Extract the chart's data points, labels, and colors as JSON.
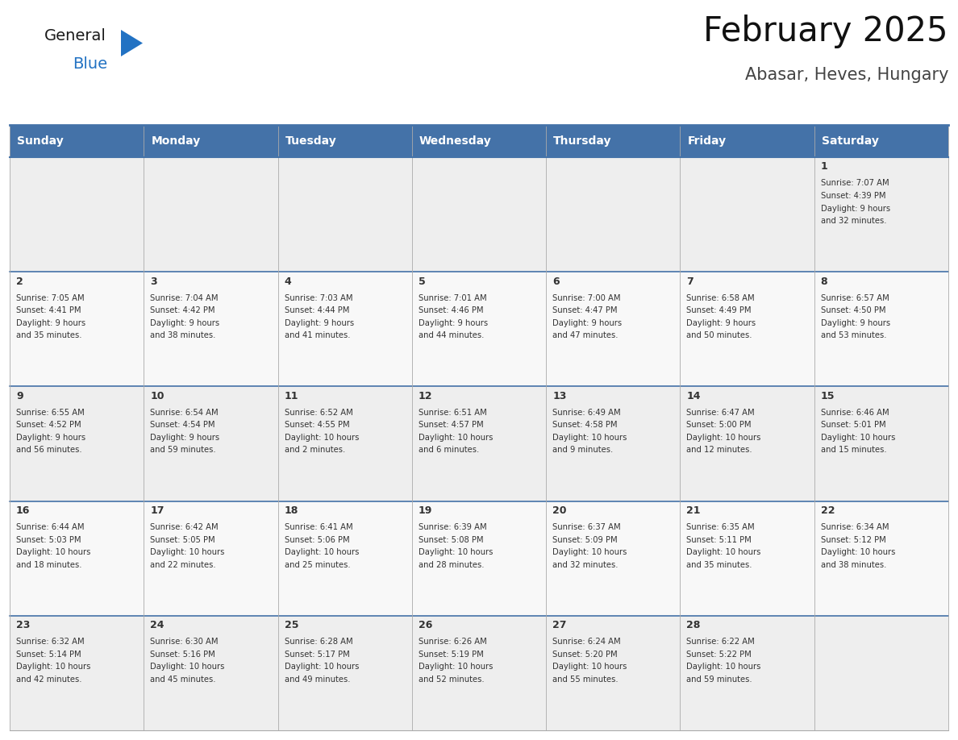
{
  "title": "February 2025",
  "subtitle": "Abasar, Heves, Hungary",
  "days_of_week": [
    "Sunday",
    "Monday",
    "Tuesday",
    "Wednesday",
    "Thursday",
    "Friday",
    "Saturday"
  ],
  "header_bg": "#4472a8",
  "header_text": "#ffffff",
  "cell_bg_odd": "#eeeeee",
  "cell_bg_even": "#f8f8f8",
  "border_color": "#4472a8",
  "cell_border_color": "#4472a8",
  "cell_border_light": "#aaaaaa",
  "text_color": "#333333",
  "title_color": "#111111",
  "subtitle_color": "#444444",
  "logo_general_color": "#1a1a1a",
  "logo_blue_color": "#2272c3",
  "calendar_data": [
    {
      "day": 1,
      "col": 6,
      "row": 0,
      "sunrise": "7:07 AM",
      "sunset": "4:39 PM",
      "daylight": "9 hours and 32 minutes."
    },
    {
      "day": 2,
      "col": 0,
      "row": 1,
      "sunrise": "7:05 AM",
      "sunset": "4:41 PM",
      "daylight": "9 hours and 35 minutes."
    },
    {
      "day": 3,
      "col": 1,
      "row": 1,
      "sunrise": "7:04 AM",
      "sunset": "4:42 PM",
      "daylight": "9 hours and 38 minutes."
    },
    {
      "day": 4,
      "col": 2,
      "row": 1,
      "sunrise": "7:03 AM",
      "sunset": "4:44 PM",
      "daylight": "9 hours and 41 minutes."
    },
    {
      "day": 5,
      "col": 3,
      "row": 1,
      "sunrise": "7:01 AM",
      "sunset": "4:46 PM",
      "daylight": "9 hours and 44 minutes."
    },
    {
      "day": 6,
      "col": 4,
      "row": 1,
      "sunrise": "7:00 AM",
      "sunset": "4:47 PM",
      "daylight": "9 hours and 47 minutes."
    },
    {
      "day": 7,
      "col": 5,
      "row": 1,
      "sunrise": "6:58 AM",
      "sunset": "4:49 PM",
      "daylight": "9 hours and 50 minutes."
    },
    {
      "day": 8,
      "col": 6,
      "row": 1,
      "sunrise": "6:57 AM",
      "sunset": "4:50 PM",
      "daylight": "9 hours and 53 minutes."
    },
    {
      "day": 9,
      "col": 0,
      "row": 2,
      "sunrise": "6:55 AM",
      "sunset": "4:52 PM",
      "daylight": "9 hours and 56 minutes."
    },
    {
      "day": 10,
      "col": 1,
      "row": 2,
      "sunrise": "6:54 AM",
      "sunset": "4:54 PM",
      "daylight": "9 hours and 59 minutes."
    },
    {
      "day": 11,
      "col": 2,
      "row": 2,
      "sunrise": "6:52 AM",
      "sunset": "4:55 PM",
      "daylight": "10 hours and 2 minutes."
    },
    {
      "day": 12,
      "col": 3,
      "row": 2,
      "sunrise": "6:51 AM",
      "sunset": "4:57 PM",
      "daylight": "10 hours and 6 minutes."
    },
    {
      "day": 13,
      "col": 4,
      "row": 2,
      "sunrise": "6:49 AM",
      "sunset": "4:58 PM",
      "daylight": "10 hours and 9 minutes."
    },
    {
      "day": 14,
      "col": 5,
      "row": 2,
      "sunrise": "6:47 AM",
      "sunset": "5:00 PM",
      "daylight": "10 hours and 12 minutes."
    },
    {
      "day": 15,
      "col": 6,
      "row": 2,
      "sunrise": "6:46 AM",
      "sunset": "5:01 PM",
      "daylight": "10 hours and 15 minutes."
    },
    {
      "day": 16,
      "col": 0,
      "row": 3,
      "sunrise": "6:44 AM",
      "sunset": "5:03 PM",
      "daylight": "10 hours and 18 minutes."
    },
    {
      "day": 17,
      "col": 1,
      "row": 3,
      "sunrise": "6:42 AM",
      "sunset": "5:05 PM",
      "daylight": "10 hours and 22 minutes."
    },
    {
      "day": 18,
      "col": 2,
      "row": 3,
      "sunrise": "6:41 AM",
      "sunset": "5:06 PM",
      "daylight": "10 hours and 25 minutes."
    },
    {
      "day": 19,
      "col": 3,
      "row": 3,
      "sunrise": "6:39 AM",
      "sunset": "5:08 PM",
      "daylight": "10 hours and 28 minutes."
    },
    {
      "day": 20,
      "col": 4,
      "row": 3,
      "sunrise": "6:37 AM",
      "sunset": "5:09 PM",
      "daylight": "10 hours and 32 minutes."
    },
    {
      "day": 21,
      "col": 5,
      "row": 3,
      "sunrise": "6:35 AM",
      "sunset": "5:11 PM",
      "daylight": "10 hours and 35 minutes."
    },
    {
      "day": 22,
      "col": 6,
      "row": 3,
      "sunrise": "6:34 AM",
      "sunset": "5:12 PM",
      "daylight": "10 hours and 38 minutes."
    },
    {
      "day": 23,
      "col": 0,
      "row": 4,
      "sunrise": "6:32 AM",
      "sunset": "5:14 PM",
      "daylight": "10 hours and 42 minutes."
    },
    {
      "day": 24,
      "col": 1,
      "row": 4,
      "sunrise": "6:30 AM",
      "sunset": "5:16 PM",
      "daylight": "10 hours and 45 minutes."
    },
    {
      "day": 25,
      "col": 2,
      "row": 4,
      "sunrise": "6:28 AM",
      "sunset": "5:17 PM",
      "daylight": "10 hours and 49 minutes."
    },
    {
      "day": 26,
      "col": 3,
      "row": 4,
      "sunrise": "6:26 AM",
      "sunset": "5:19 PM",
      "daylight": "10 hours and 52 minutes."
    },
    {
      "day": 27,
      "col": 4,
      "row": 4,
      "sunrise": "6:24 AM",
      "sunset": "5:20 PM",
      "daylight": "10 hours and 55 minutes."
    },
    {
      "day": 28,
      "col": 5,
      "row": 4,
      "sunrise": "6:22 AM",
      "sunset": "5:22 PM",
      "daylight": "10 hours and 59 minutes."
    }
  ]
}
